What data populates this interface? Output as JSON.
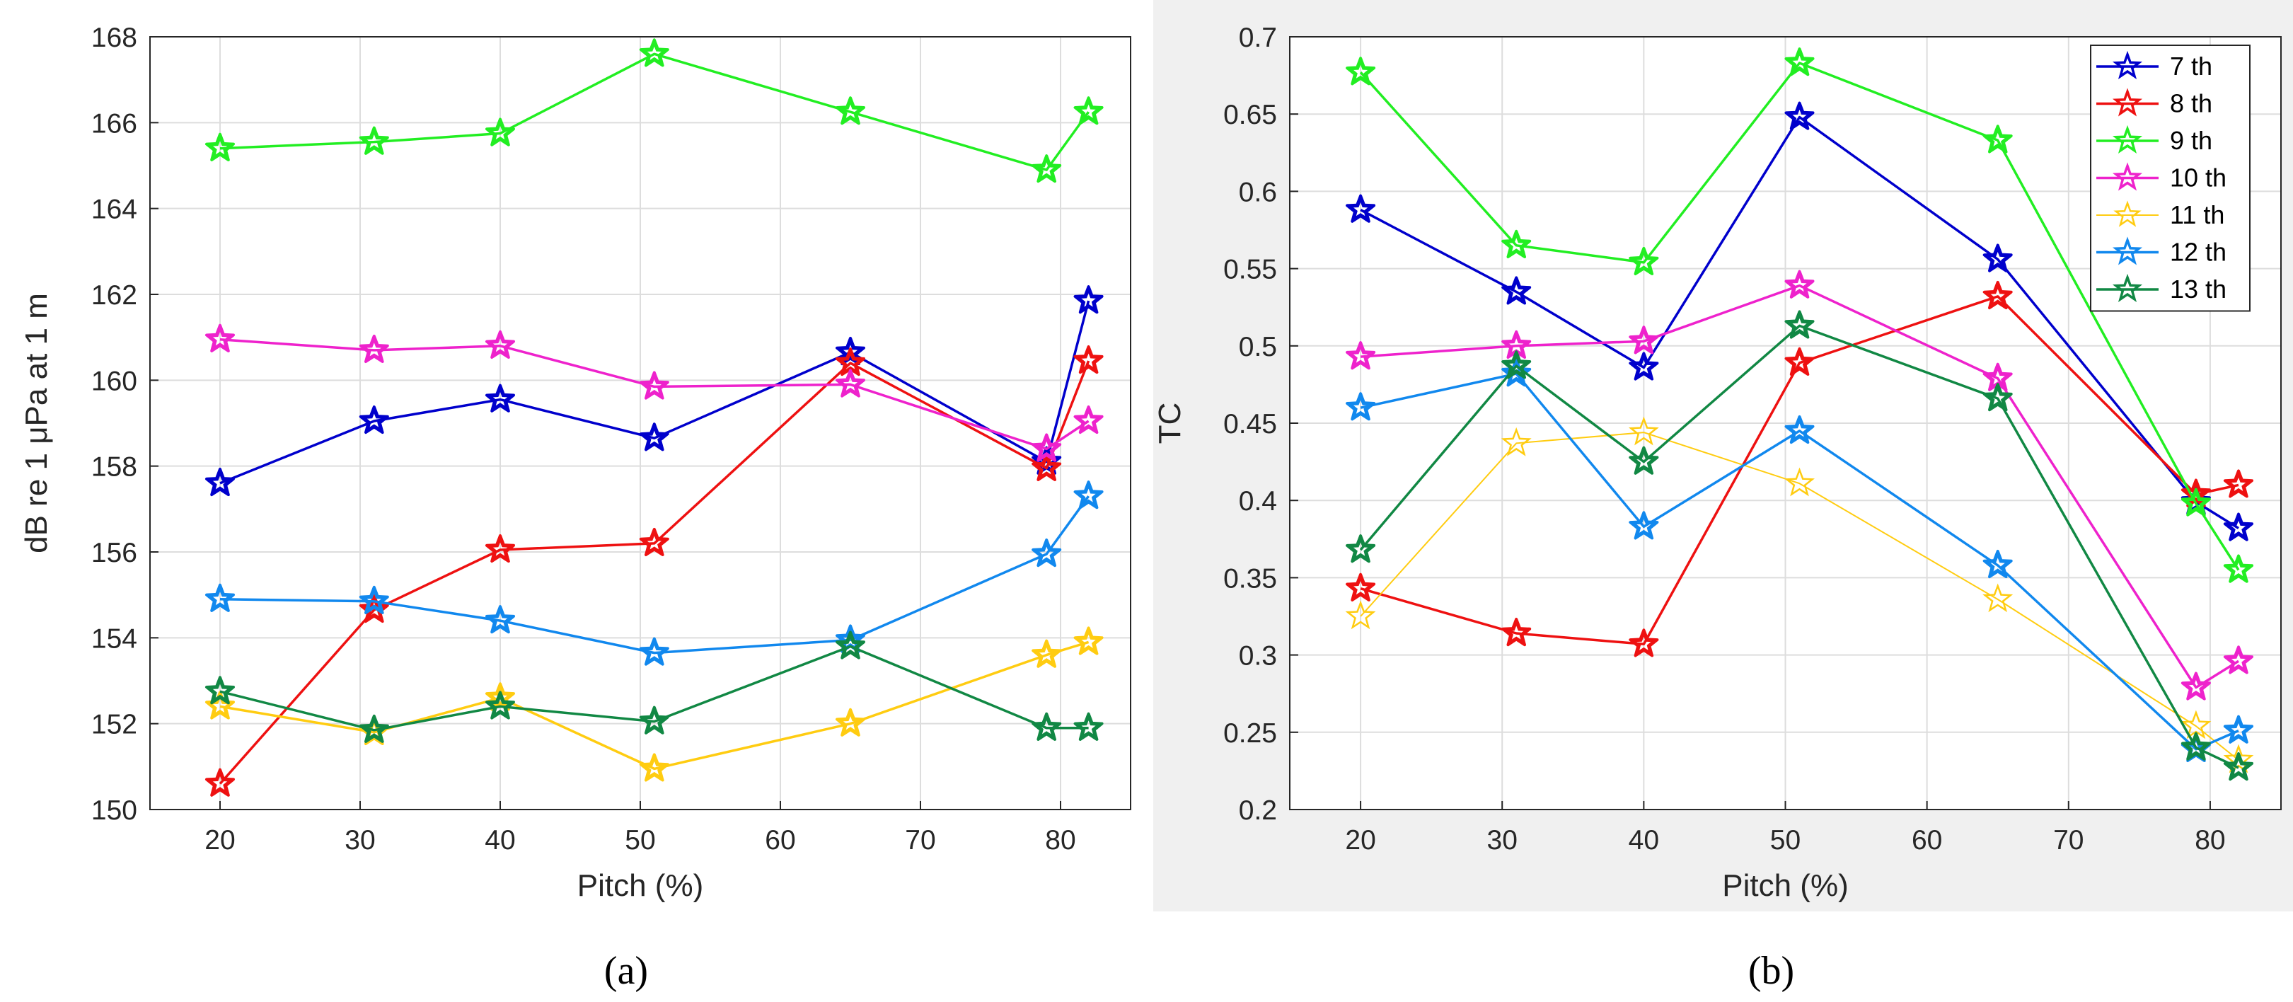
{
  "chart_data": [
    {
      "type": "line",
      "panel_label": "(a)",
      "xlabel": "Pitch (%)",
      "ylabel": "dB re 1  μPa at 1 m",
      "xlim": [
        15,
        85
      ],
      "ylim": [
        150,
        168
      ],
      "xticks": [
        20,
        30,
        40,
        50,
        60,
        70,
        80
      ],
      "yticks": [
        150,
        152,
        154,
        156,
        158,
        160,
        162,
        164,
        166,
        168
      ],
      "grid": true,
      "background": "#ffffff",
      "x": [
        20,
        31,
        40,
        51,
        65,
        79,
        82
      ],
      "series": [
        {
          "name": "7 th",
          "color": "#0000cc",
          "marker": "star",
          "hollow": false,
          "values": [
            157.6,
            159.05,
            159.55,
            158.65,
            160.65,
            158.1,
            161.85
          ]
        },
        {
          "name": "8 th",
          "color": "#ee1111",
          "marker": "star",
          "hollow": false,
          "values": [
            150.6,
            154.65,
            156.05,
            156.2,
            160.4,
            157.95,
            160.45
          ]
        },
        {
          "name": "9 th",
          "color": "#22ee22",
          "marker": "star",
          "hollow": false,
          "values": [
            165.4,
            165.55,
            165.75,
            167.6,
            166.25,
            164.9,
            166.25
          ]
        },
        {
          "name": "10 th",
          "color": "#ee22cc",
          "marker": "star",
          "hollow": false,
          "values": [
            160.95,
            160.7,
            160.8,
            159.85,
            159.9,
            158.4,
            159.05
          ]
        },
        {
          "name": "11 th",
          "color": "#ffcc11",
          "marker": "star",
          "hollow": false,
          "values": [
            152.4,
            151.8,
            152.6,
            150.95,
            152.0,
            153.6,
            153.9
          ]
        },
        {
          "name": "12 th",
          "color": "#1188ee",
          "marker": "star",
          "hollow": false,
          "values": [
            154.9,
            154.85,
            154.4,
            153.65,
            153.95,
            155.95,
            157.3
          ]
        },
        {
          "name": "13 th",
          "color": "#118844",
          "marker": "star",
          "hollow": false,
          "values": [
            152.75,
            151.85,
            152.4,
            152.05,
            153.8,
            151.9,
            151.9
          ]
        }
      ]
    },
    {
      "type": "line",
      "panel_label": "(b)",
      "xlabel": "Pitch (%)",
      "ylabel": "TC",
      "xlim": [
        15,
        85
      ],
      "ylim": [
        0.2,
        0.7
      ],
      "xticks": [
        20,
        30,
        40,
        50,
        60,
        70,
        80
      ],
      "yticks": [
        0.2,
        0.25,
        0.3,
        0.35,
        0.4,
        0.45,
        0.5,
        0.55,
        0.6,
        0.65,
        0.7
      ],
      "ytick_labels": [
        "0.2",
        "0.25",
        "0.3",
        "0.35",
        "0.4",
        "0.45",
        "0.5",
        "0.55",
        "0.6",
        "0.65",
        "0.7"
      ],
      "grid": true,
      "background": "#f0f0f0",
      "legend": "top-right",
      "x": [
        20,
        31,
        40,
        51,
        65,
        79,
        82
      ],
      "series": [
        {
          "name": "7 th",
          "color": "#0000cc",
          "marker": "star",
          "hollow": false,
          "width": 3.5,
          "values": [
            0.588,
            0.535,
            0.486,
            0.648,
            0.556,
            0.399,
            0.382
          ]
        },
        {
          "name": "8 th",
          "color": "#ee1111",
          "marker": "star",
          "hollow": false,
          "width": 3.5,
          "values": [
            0.343,
            0.314,
            0.307,
            0.489,
            0.532,
            0.404,
            0.41
          ]
        },
        {
          "name": "9 th",
          "color": "#22ee22",
          "marker": "star",
          "hollow": false,
          "width": 3.5,
          "values": [
            0.677,
            0.565,
            0.554,
            0.683,
            0.633,
            0.398,
            0.355
          ]
        },
        {
          "name": "10 th",
          "color": "#ee22cc",
          "marker": "star",
          "hollow": false,
          "width": 3.5,
          "values": [
            0.493,
            0.5,
            0.503,
            0.539,
            0.479,
            0.279,
            0.296
          ]
        },
        {
          "name": "11 th",
          "color": "#ffcc11",
          "marker": "star",
          "hollow": true,
          "width": 2,
          "values": [
            0.325,
            0.437,
            0.444,
            0.411,
            0.336,
            0.254,
            0.232
          ]
        },
        {
          "name": "12 th",
          "color": "#1188ee",
          "marker": "star",
          "hollow": false,
          "width": 3.5,
          "values": [
            0.46,
            0.482,
            0.383,
            0.445,
            0.358,
            0.239,
            0.251
          ]
        },
        {
          "name": "13 th",
          "color": "#118844",
          "marker": "star",
          "hollow": false,
          "width": 3.5,
          "values": [
            0.368,
            0.487,
            0.425,
            0.513,
            0.466,
            0.24,
            0.227
          ]
        }
      ]
    }
  ]
}
